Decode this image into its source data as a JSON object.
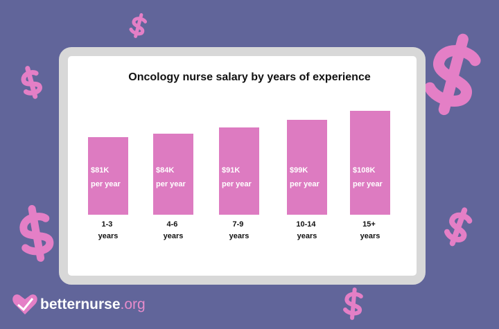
{
  "chart_data": {
    "type": "bar",
    "title": "Oncology nurse salary by years of experience",
    "categories": [
      "1-3 years",
      "4-6 years",
      "7-9 years",
      "10-14 years",
      "15+ years"
    ],
    "values": [
      81,
      84,
      91,
      99,
      108
    ],
    "value_labels": [
      "$81K per year",
      "$84K per year",
      "$91K per year",
      "$99K per year",
      "$108K per year"
    ],
    "color": "#dd7bc1"
  },
  "logo": {
    "name": "betternurse",
    "domain": ".org"
  }
}
